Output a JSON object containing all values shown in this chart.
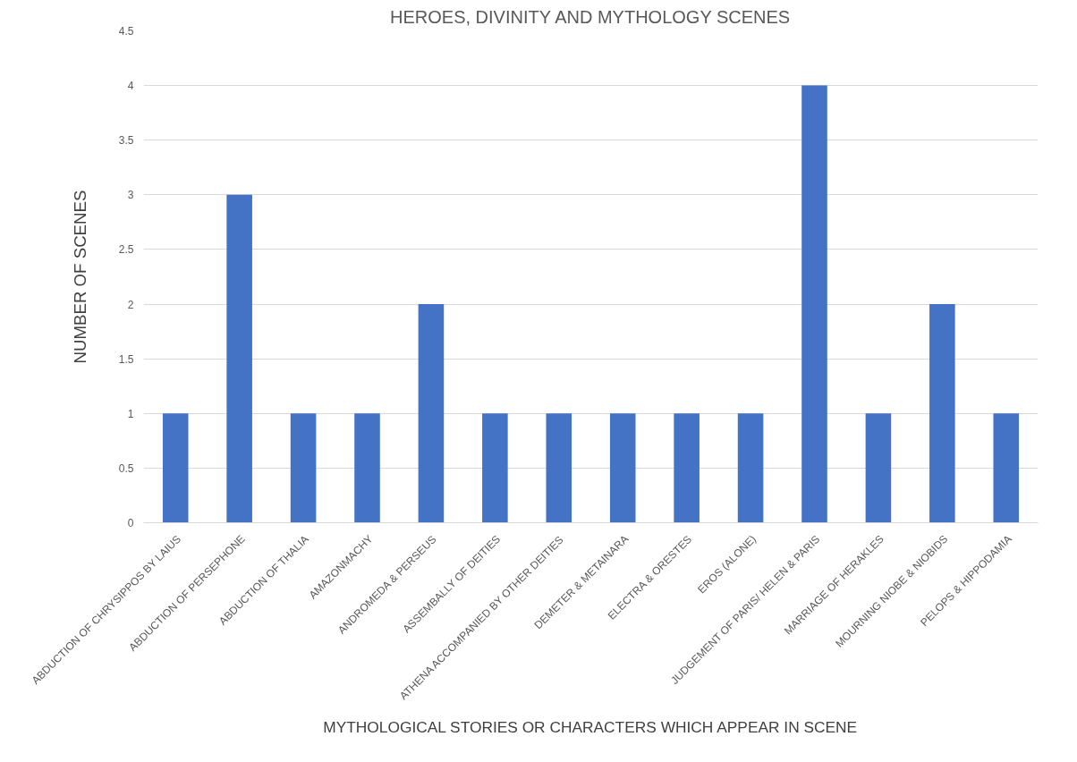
{
  "chart_data": {
    "type": "bar",
    "title": "HEROES, DIVINITY AND MYTHOLOGY SCENES",
    "xlabel": "MYTHOLOGICAL STORIES OR CHARACTERS WHICH APPEAR IN SCENE",
    "ylabel": "NUMBER OF SCENES",
    "categories": [
      "ABDUCTION OF CHRYSIPPOS BY LAIUS",
      "ABDUCTION OF PERSEPHONE",
      "ABDUCTION OF THALIA",
      "AMAZONMACHY",
      "ANDROMEDA & PERSEUS",
      "ASSEMBALLY OF DEITIES",
      "ATHENA ACCOMPANIED BY OTHER DEITIES",
      "DEMETER & METAINARA",
      "ELECTRA & ORESTES",
      "EROS (ALONE)",
      "JUDGEMENT OF PARIS/ HELEN & PARIS",
      "MARRIAGE OF HERAKLES",
      "MOURNING NIOBE & NIOBIDS",
      "PELOPS & HIPPODAMIA"
    ],
    "values": [
      1,
      3,
      1,
      1,
      2,
      1,
      1,
      1,
      1,
      1,
      4,
      1,
      2,
      1
    ],
    "color": "#4472c4",
    "ylim": [
      0,
      4.5
    ],
    "yticks": [
      0,
      0.5,
      1,
      1.5,
      2,
      2.5,
      3,
      3.5,
      4,
      4.5
    ],
    "grid": "y",
    "legend": false
  }
}
